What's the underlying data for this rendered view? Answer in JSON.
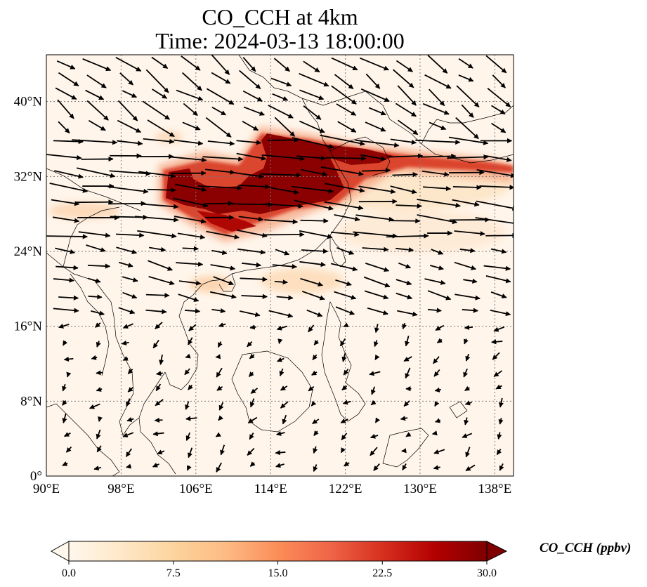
{
  "title": {
    "line1": "CO_CCH at 4km",
    "line2": "Time: 2024-03-13 18:00:00"
  },
  "map": {
    "projection": "PlateCarree",
    "lon_range": [
      90,
      140
    ],
    "lat_range": [
      0,
      45
    ],
    "gridlines": true,
    "lon_ticks": [
      {
        "value": 90,
        "label": "90°E"
      },
      {
        "value": 98,
        "label": "98°E"
      },
      {
        "value": 106,
        "label": "106°E"
      },
      {
        "value": 114,
        "label": "114°E"
      },
      {
        "value": 122,
        "label": "122°E"
      },
      {
        "value": 130,
        "label": "130°E"
      },
      {
        "value": 138,
        "label": "138°E"
      }
    ],
    "lat_ticks": [
      {
        "value": 0,
        "label": "0°"
      },
      {
        "value": 8,
        "label": "8°N"
      },
      {
        "value": 16,
        "label": "16°N"
      },
      {
        "value": 24,
        "label": "24°N"
      },
      {
        "value": 32,
        "label": "32°N"
      },
      {
        "value": 40,
        "label": "40°N"
      }
    ],
    "field": "CO_CCH",
    "plume_region": "eastern China to southern Japan, 27–36°N"
  },
  "colorbar": {
    "label": "CO_CCH (ppbv)",
    "min": 0,
    "max": 30,
    "extend": "both",
    "colormap": "OrRd",
    "stops": [
      "#fff7ec",
      "#fee8c8",
      "#fdd49e",
      "#fdbb84",
      "#fc8d59",
      "#ef6548",
      "#d7301f",
      "#b30000",
      "#7f0000"
    ],
    "ticks": [
      {
        "value": 0,
        "label": "0.0"
      },
      {
        "value": 7.5,
        "label": "7.5"
      },
      {
        "value": 15,
        "label": "15.0"
      },
      {
        "value": 22.5,
        "label": "22.5"
      },
      {
        "value": 30,
        "label": "30.0"
      }
    ]
  }
}
